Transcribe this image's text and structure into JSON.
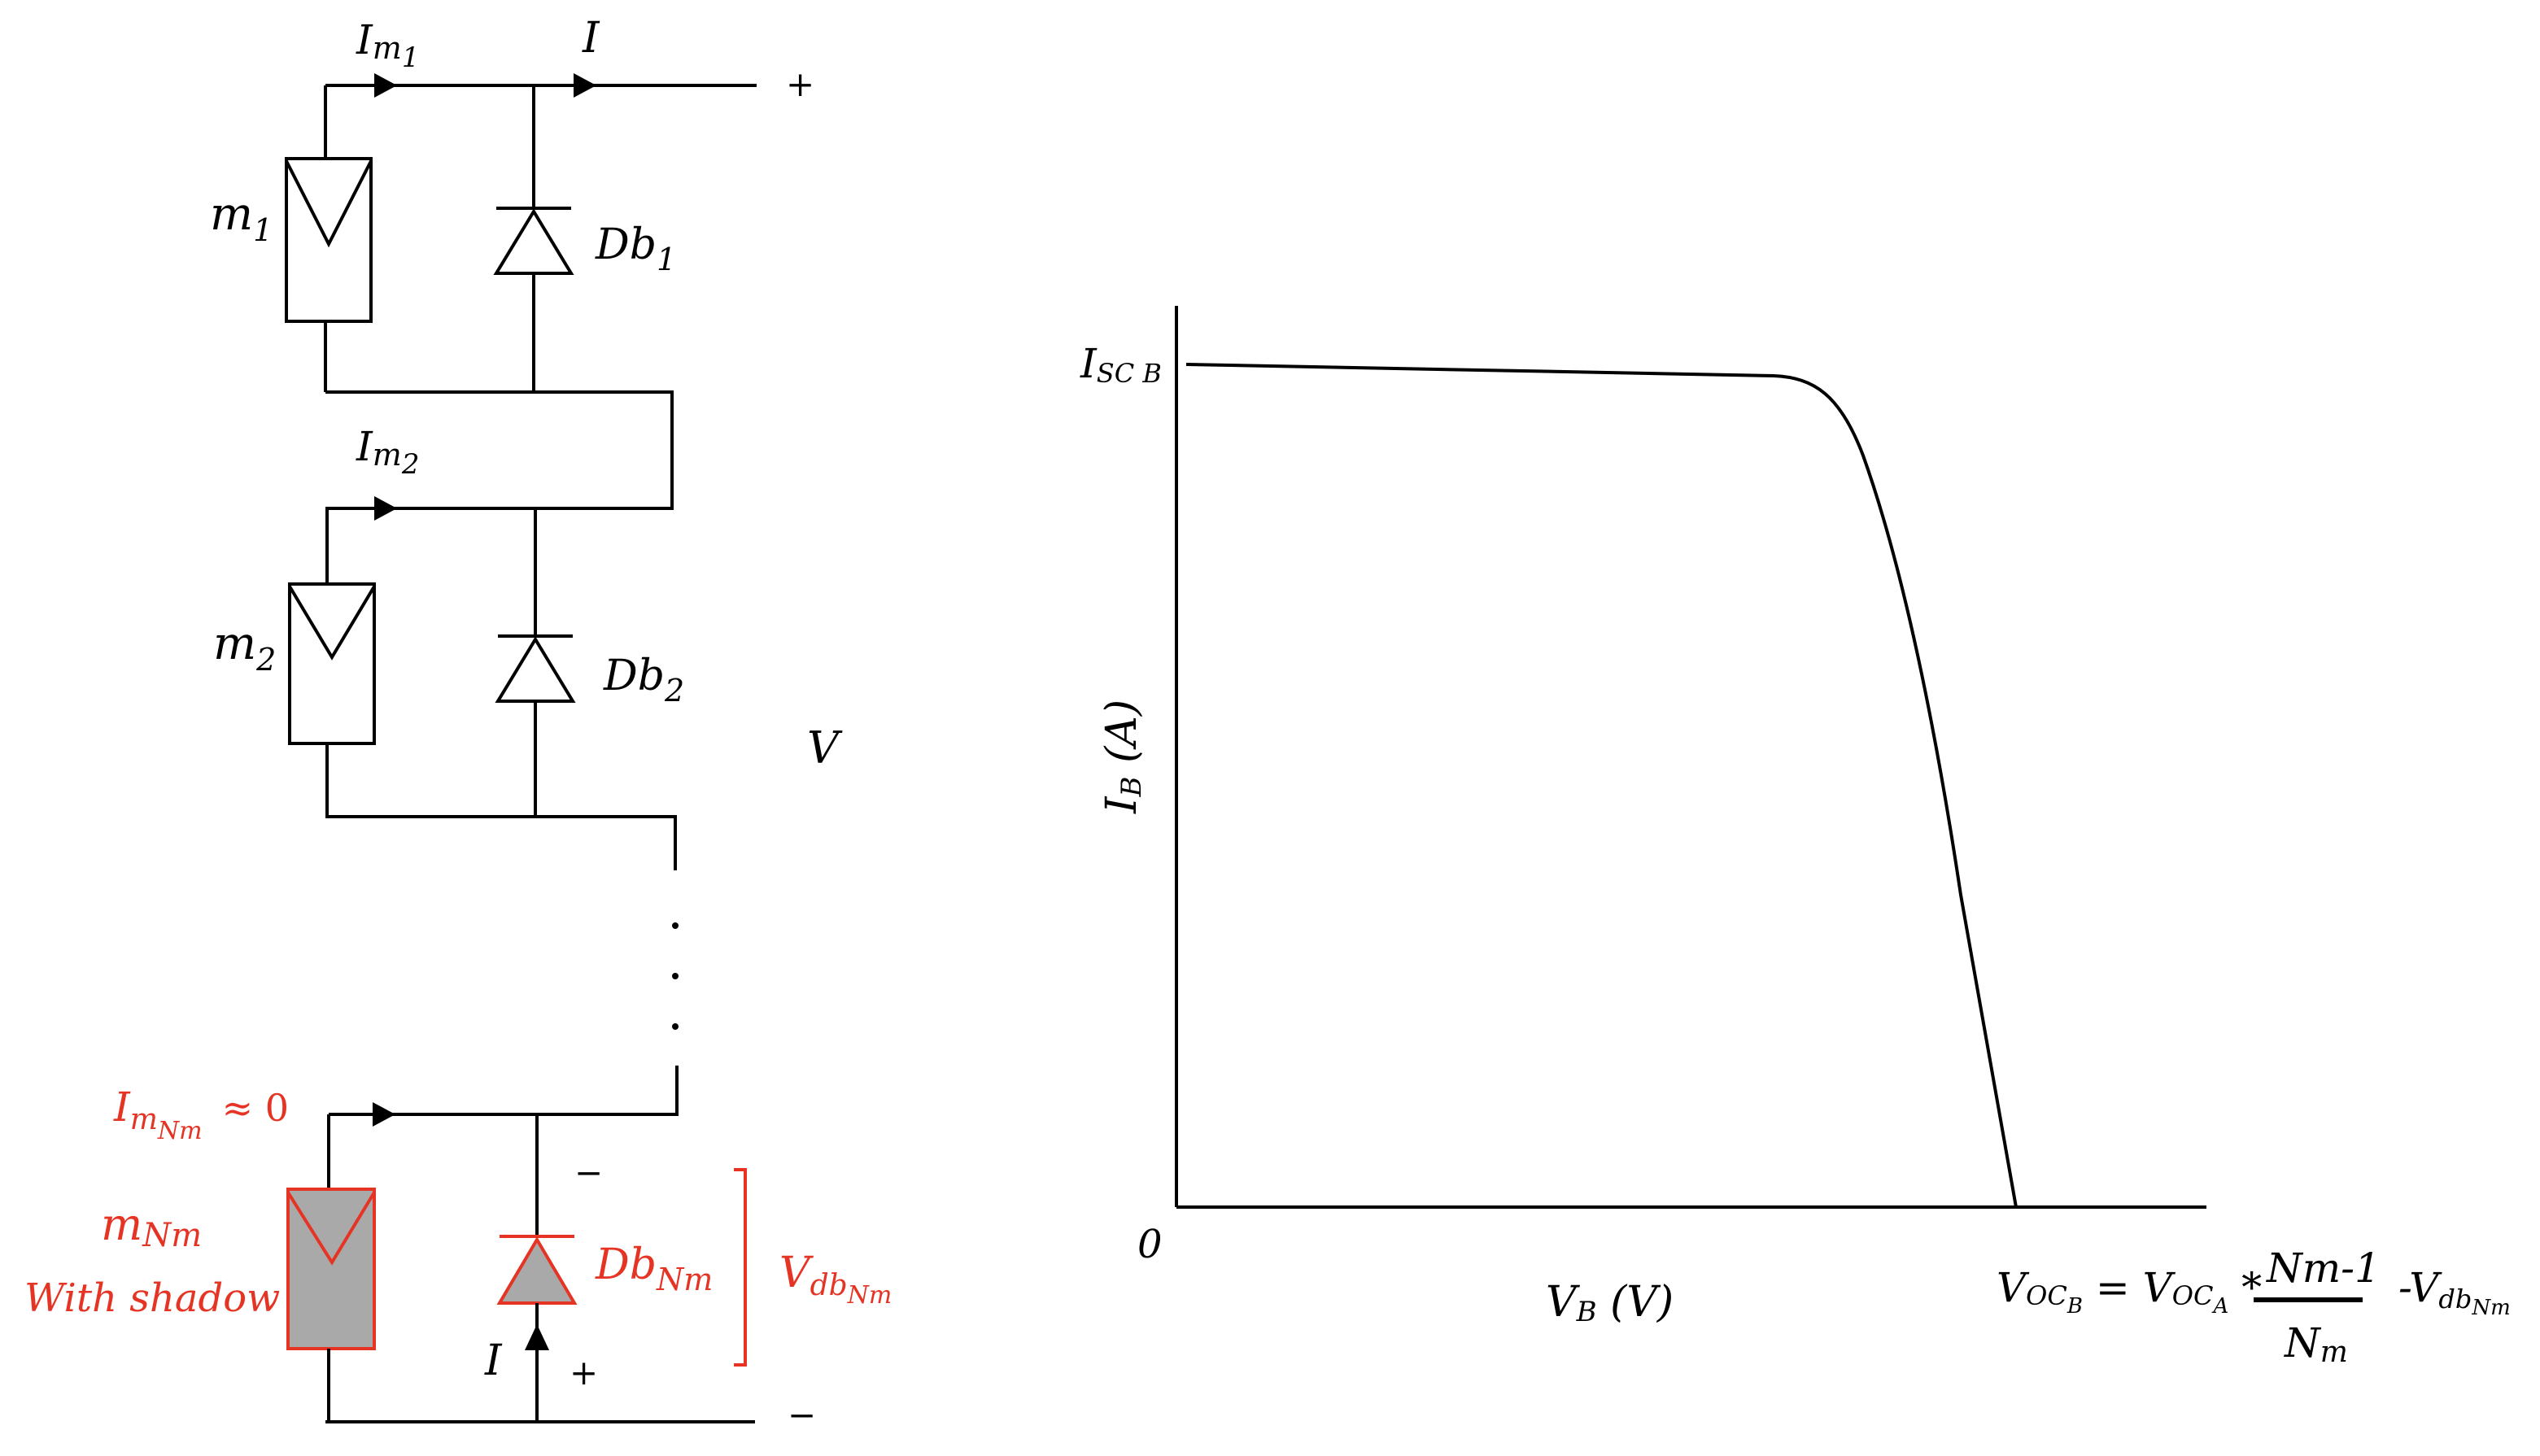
{
  "colors": {
    "ink": "#000000",
    "highlight": "#e53424",
    "shadow_fill": "#a9a9a9"
  },
  "circuit": {
    "top_current": {
      "main": "I",
      "sub": "m",
      "subsub": "1"
    },
    "output_current": "I",
    "plus": "+",
    "minus": "−",
    "module1": {
      "main": "m",
      "sub": "1"
    },
    "diode1": {
      "main": "Db",
      "sub": "1"
    },
    "current2": {
      "main": "I",
      "sub": "m",
      "subsub": "2"
    },
    "module2": {
      "main": "m",
      "sub": "2"
    },
    "diode2": {
      "main": "Db",
      "sub": "2"
    },
    "voltage": "V",
    "dots": ".",
    "shaded_current": {
      "main": "I",
      "sub": "m",
      "subsub": "Nm",
      "approx": "≈ 0"
    },
    "shaded_module": {
      "main": "m",
      "sub": "Nm",
      "note": "With shadow"
    },
    "shaded_diode": {
      "main": "Db",
      "sub": "Nm"
    },
    "diode_voltage": {
      "main": "V",
      "sub": "db",
      "subsub": "Nm"
    },
    "diode_minus": "−",
    "diode_plus": "+",
    "bottom_current": "I",
    "bottom_minus": "−"
  },
  "chart_data": {
    "type": "line",
    "x_axis_label": {
      "main": "V",
      "sub": "B",
      "unit": " (V)"
    },
    "y_axis_label": {
      "main": "I",
      "sub": "B",
      "unit": " (A)"
    },
    "origin_label": "0",
    "isc_label": {
      "main": "I",
      "sub": "SC B"
    },
    "voc_formula": {
      "lhs": "V",
      "lhs_sub": "OC",
      "lhs_subsub": "B",
      "eq": " = ",
      "rhs": "V",
      "rhs_sub": "OC",
      "rhs_subsub": "A",
      "times": " *",
      "numerator": "Nm-1",
      "denominator": "N",
      "denominator_sub": "m",
      "minus_term": "-V",
      "minus_sub": "db",
      "minus_subsub": "Nm"
    },
    "curve": "I-V curve falling from I_SC_B at V=0 to zero at V_OC_B"
  }
}
